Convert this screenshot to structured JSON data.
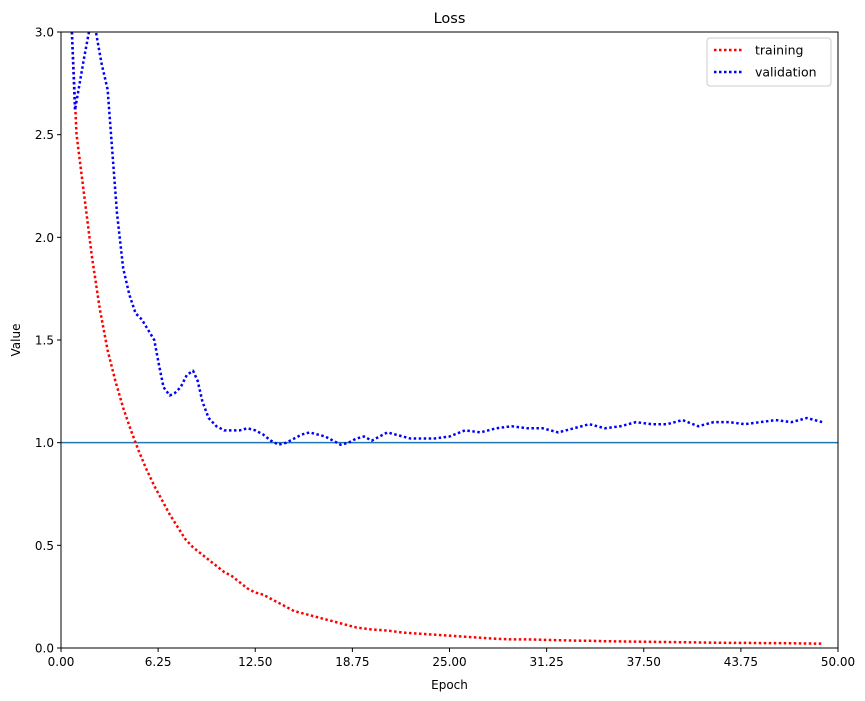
{
  "chart_data": {
    "type": "line",
    "title": "Loss",
    "xlabel": "Epoch",
    "ylabel": "Value",
    "xlim": [
      0,
      50
    ],
    "ylim": [
      0,
      3
    ],
    "xticks": [
      "0.00",
      "6.25",
      "12.50",
      "18.75",
      "25.00",
      "31.25",
      "37.50",
      "43.75",
      "50.00"
    ],
    "yticks": [
      "0.0",
      "0.5",
      "1.0",
      "1.5",
      "2.0",
      "2.5",
      "3.0"
    ],
    "grid": false,
    "legend_position": "top-right",
    "reference_line": {
      "y": 1.0,
      "color": "#1f77b4"
    },
    "series": [
      {
        "name": "training",
        "color": "#ff0000",
        "style": "dotted",
        "x": [
          0.7,
          1,
          1.5,
          2,
          2.5,
          3,
          3.5,
          4,
          4.5,
          5,
          5.5,
          6,
          6.5,
          7,
          7.5,
          8,
          8.5,
          9,
          9.5,
          10,
          10.5,
          11,
          11.5,
          12,
          12.5,
          13,
          13.5,
          14,
          14.5,
          15,
          16,
          17,
          18,
          19,
          20,
          21,
          22,
          23,
          24,
          25,
          26,
          27,
          28,
          29,
          30,
          31,
          32,
          33,
          34,
          35,
          36,
          37,
          38,
          39,
          40,
          41,
          42,
          43,
          44,
          45,
          46,
          47,
          48,
          49
        ],
        "values": [
          3.0,
          2.5,
          2.2,
          1.9,
          1.65,
          1.45,
          1.3,
          1.17,
          1.06,
          0.96,
          0.87,
          0.79,
          0.72,
          0.65,
          0.59,
          0.53,
          0.49,
          0.46,
          0.43,
          0.4,
          0.37,
          0.35,
          0.32,
          0.29,
          0.27,
          0.26,
          0.24,
          0.22,
          0.2,
          0.18,
          0.16,
          0.14,
          0.12,
          0.1,
          0.09,
          0.085,
          0.075,
          0.07,
          0.065,
          0.06,
          0.055,
          0.05,
          0.045,
          0.042,
          0.042,
          0.04,
          0.038,
          0.036,
          0.035,
          0.033,
          0.032,
          0.031,
          0.03,
          0.029,
          0.028,
          0.027,
          0.026,
          0.025,
          0.025,
          0.024,
          0.024,
          0.023,
          0.022,
          0.021
        ]
      },
      {
        "name": "validation",
        "color": "#0000ff",
        "style": "dotted",
        "x": [
          0.7,
          0.9,
          1.2,
          1.5,
          1.8,
          2.2,
          2.6,
          3.0,
          3.3,
          3.6,
          4.0,
          4.4,
          4.8,
          5.2,
          5.6,
          6.0,
          6.3,
          6.6,
          7.0,
          7.3,
          7.7,
          8.1,
          8.5,
          8.8,
          9.1,
          9.5,
          10,
          10.5,
          11,
          11.5,
          12,
          12.5,
          13,
          13.5,
          14,
          14.5,
          15,
          15.5,
          16,
          16.5,
          17,
          17.5,
          18,
          18.5,
          19,
          19.5,
          20,
          20.5,
          21,
          21.5,
          22,
          22.5,
          23,
          24,
          25,
          26,
          27,
          28,
          29,
          30,
          31,
          32,
          33,
          34,
          35,
          36,
          37,
          38,
          39,
          40,
          41,
          42,
          43,
          44,
          45,
          46,
          47,
          48,
          49
        ],
        "values": [
          3.0,
          2.62,
          2.75,
          2.88,
          3.0,
          3.02,
          2.85,
          2.72,
          2.42,
          2.12,
          1.85,
          1.72,
          1.63,
          1.6,
          1.55,
          1.5,
          1.38,
          1.27,
          1.23,
          1.24,
          1.27,
          1.33,
          1.35,
          1.3,
          1.2,
          1.12,
          1.08,
          1.06,
          1.06,
          1.06,
          1.07,
          1.06,
          1.04,
          1.01,
          0.99,
          1.0,
          1.02,
          1.04,
          1.05,
          1.04,
          1.03,
          1.01,
          0.99,
          1.0,
          1.02,
          1.03,
          1.01,
          1.03,
          1.05,
          1.04,
          1.03,
          1.02,
          1.02,
          1.02,
          1.03,
          1.06,
          1.05,
          1.07,
          1.08,
          1.07,
          1.07,
          1.05,
          1.07,
          1.09,
          1.07,
          1.08,
          1.1,
          1.09,
          1.09,
          1.11,
          1.08,
          1.1,
          1.1,
          1.09,
          1.1,
          1.11,
          1.1,
          1.12,
          1.1
        ]
      }
    ]
  }
}
